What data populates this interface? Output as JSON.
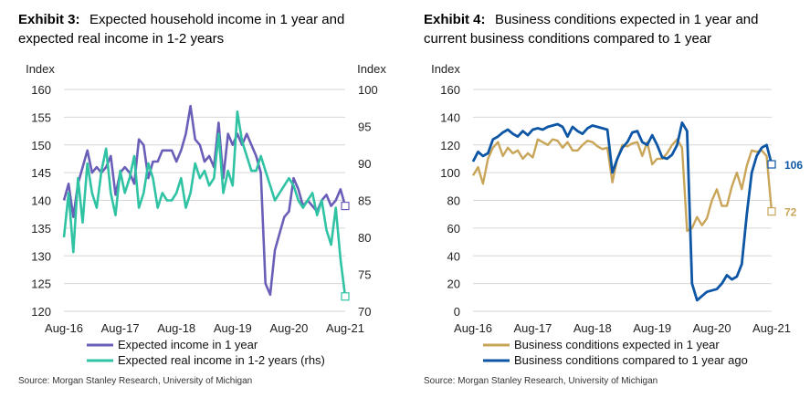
{
  "chart_data": [
    {
      "type": "line",
      "exhibit_label": "Exhibit 3:",
      "title_line1": "Expected household income in 1 year and",
      "title_line2": "expected real income in 1-2 years",
      "ylabel_left": "Index",
      "ylabel_right": "Index",
      "ylim_left": [
        120,
        160
      ],
      "ylim_right": [
        70,
        100
      ],
      "yticks_left": [
        "160",
        "155",
        "150",
        "145",
        "140",
        "135",
        "130",
        "125",
        "120"
      ],
      "yticks_right": [
        "100",
        "95",
        "90",
        "85",
        "80",
        "75",
        "70"
      ],
      "x_tick_labels": [
        "Aug-16",
        "Aug-17",
        "Aug-18",
        "Aug-19",
        "Aug-20",
        "Aug-21"
      ],
      "n_points": 61,
      "series": [
        {
          "name": "Expected income in 1 year",
          "axis": "left",
          "color": "#6a5fb8",
          "values": [
            140,
            143,
            137,
            143,
            146,
            149,
            145,
            146,
            145,
            146,
            148,
            141,
            145,
            146,
            145,
            143,
            151,
            150,
            144,
            147,
            147,
            149,
            149,
            149,
            147,
            149,
            152,
            157,
            151,
            150,
            147,
            148,
            146,
            154,
            144,
            152,
            150,
            152,
            150,
            152,
            150,
            148,
            145,
            125,
            123,
            131,
            134,
            137,
            138,
            144,
            142,
            139,
            140,
            139,
            138,
            140,
            141,
            139,
            140,
            142,
            139
          ],
          "end_value": "139"
        },
        {
          "name": "Expected real income in 1-2 years (rhs)",
          "axis": "right",
          "color": "#2fc3a4",
          "values": [
            80,
            86,
            78,
            88,
            82,
            90,
            86,
            84,
            89,
            92,
            86,
            83,
            89,
            86,
            88,
            91,
            84,
            86,
            90,
            88,
            84,
            86,
            85,
            85,
            86,
            88,
            84,
            86,
            90,
            88,
            89,
            87,
            88,
            94,
            86,
            89,
            87,
            97,
            93,
            91,
            89,
            89,
            91,
            89,
            87,
            85,
            86,
            87,
            88,
            87,
            85,
            84,
            85,
            86,
            83,
            85,
            81,
            79,
            84,
            77,
            72
          ],
          "end_value": "72"
        }
      ],
      "source": "Source: Morgan Stanley Research, University of Michigan"
    },
    {
      "type": "line",
      "exhibit_label": "Exhibit 4:",
      "title_line1": "Business conditions expected in 1 year and",
      "title_line2": "current business conditions compared to 1 year",
      "ylabel": "Index",
      "ylim": [
        0,
        160
      ],
      "yticks": [
        "160",
        "140",
        "120",
        "100",
        "80",
        "60",
        "40",
        "20",
        "0"
      ],
      "x_tick_labels": [
        "Aug-16",
        "Aug-17",
        "Aug-18",
        "Aug-19",
        "Aug-20",
        "Aug-21"
      ],
      "n_points": 61,
      "series": [
        {
          "name": "Business conditions expected in 1 year",
          "color": "#c9a55a",
          "values": [
            98,
            104,
            92,
            110,
            118,
            122,
            112,
            118,
            114,
            116,
            110,
            114,
            111,
            124,
            122,
            120,
            124,
            123,
            118,
            122,
            116,
            116,
            120,
            123,
            122,
            119,
            117,
            118,
            93,
            110,
            120,
            119,
            121,
            122,
            112,
            122,
            106,
            110,
            110,
            114,
            120,
            124,
            118,
            58,
            60,
            68,
            62,
            67,
            80,
            88,
            76,
            76,
            90,
            100,
            88,
            105,
            116,
            115,
            116,
            112,
            72
          ],
          "end_value": "72"
        },
        {
          "name": "Business conditions compared to 1 year ago",
          "color": "#0d56a6",
          "values": [
            108,
            115,
            112,
            114,
            124,
            126,
            129,
            131,
            128,
            126,
            130,
            127,
            131,
            132,
            131,
            133,
            134,
            135,
            133,
            126,
            133,
            130,
            128,
            132,
            134,
            133,
            132,
            131,
            100,
            110,
            118,
            122,
            129,
            130,
            122,
            120,
            127,
            120,
            111,
            110,
            113,
            120,
            136,
            130,
            20,
            8,
            11,
            14,
            15,
            16,
            20,
            26,
            23,
            25,
            34,
            70,
            100,
            112,
            118,
            120,
            106
          ],
          "end_value": "106"
        }
      ],
      "source": "Source: Morgan Stanley Research, University of Michigan"
    }
  ]
}
